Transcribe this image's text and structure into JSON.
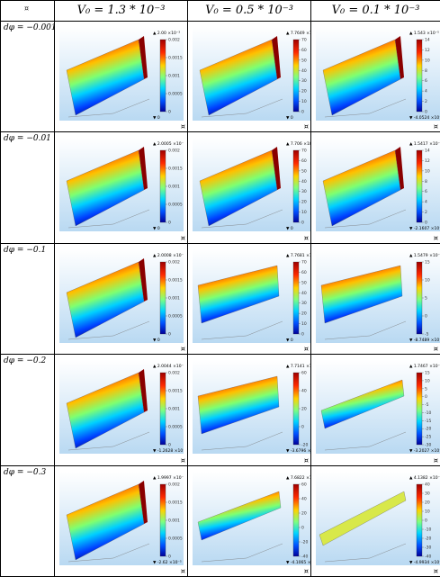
{
  "corner_mark": "¤",
  "cell_mark": "¤",
  "columns": [
    {
      "label": "V₀ = 1.3 * 10⁻³"
    },
    {
      "label": "V₀ = 0.5 * 10⁻³"
    },
    {
      "label": "V₀ = 0.1 * 10⁻³"
    }
  ],
  "rows": [
    {
      "label": "dφ = −0.001",
      "cells": [
        {
          "max": "▲ 2.00 ×10⁻³",
          "min": "▼ 0",
          "ticks": [
            "0.002",
            "0.0015",
            "0.001",
            "0.0005",
            "0"
          ],
          "style": "tilt"
        },
        {
          "max": "▲ 7.7649 ×10⁻⁵",
          "min": "▼ 0",
          "ticks": [
            "70",
            "60",
            "50",
            "40",
            "30",
            "20",
            "10",
            "0"
          ],
          "style": "tilt"
        },
        {
          "max": "▲ 1.543 ×10⁻⁵",
          "min": "▼ -4.0524 ×10⁻⁸",
          "ticks": [
            "14",
            "12",
            "10",
            "8",
            "6",
            "4",
            "2",
            "0"
          ],
          "style": "tilt"
        }
      ]
    },
    {
      "label": "dφ = −0.01",
      "cells": [
        {
          "max": "▲ 2.0005 ×10⁻³",
          "min": "▼ 0",
          "ticks": [
            "0.002",
            "0.0015",
            "0.001",
            "0.0005",
            "0"
          ],
          "style": "tilt"
        },
        {
          "max": "▲ 7.706 ×10⁻⁵",
          "min": "▼ 0",
          "ticks": [
            "70",
            "60",
            "50",
            "40",
            "30",
            "20",
            "10",
            "0"
          ],
          "style": "tilt"
        },
        {
          "max": "▲ 1.5417 ×10⁻⁵",
          "min": "▼ -2.1607 ×10⁻⁶",
          "ticks": [
            "14",
            "12",
            "10",
            "8",
            "6",
            "4",
            "2",
            "0"
          ],
          "style": "tilt"
        }
      ]
    },
    {
      "label": "dφ = −0.1",
      "cells": [
        {
          "max": "▲ 2.0008 ×10⁻³",
          "min": "▼ 0",
          "ticks": [
            "0.002",
            "0.0015",
            "0.001",
            "0.0005",
            "0"
          ],
          "style": "tilt"
        },
        {
          "max": "▲ 7.7681 ×10⁻⁵",
          "min": "▼ 0",
          "ticks": [
            "70",
            "60",
            "50",
            "40",
            "30",
            "20",
            "10",
            "0"
          ],
          "style": "flat"
        },
        {
          "max": "▲ 1.5479 ×10⁻⁵",
          "min": "▼ -8.7489 ×10⁻⁶",
          "ticks": [
            "15",
            "10",
            "5",
            "0",
            "-5"
          ],
          "style": "flat"
        }
      ]
    },
    {
      "label": "dφ = −0.2",
      "cells": [
        {
          "max": "▲ 2.0044 ×10⁻³",
          "min": "▼ -1.2628 ×10⁻⁵",
          "ticks": [
            "0.002",
            "0.0015",
            "0.001",
            "0.0005",
            "0"
          ],
          "style": "tilt"
        },
        {
          "max": "▲ 7.7141 ×10⁻⁵",
          "min": "▼ -3.6796 ×10⁻⁵",
          "ticks": [
            "60",
            "40",
            "20",
            "0",
            "-20"
          ],
          "style": "flat"
        },
        {
          "max": "▲ 1.7467 ×10⁻⁵",
          "min": "▼ -3.2027 ×10⁻⁵",
          "ticks": [
            "15",
            "10",
            "5",
            "0",
            "-5",
            "-10",
            "-15",
            "-20",
            "-25",
            "-30"
          ],
          "style": "strip"
        }
      ]
    },
    {
      "label": "dφ = −0.3",
      "cells": [
        {
          "max": "▲ 1.9997 ×10⁻³",
          "min": "▼ -2.62 ×10⁻⁵",
          "ticks": [
            "0.002",
            "0.0015",
            "0.001",
            "0.0005",
            "0"
          ],
          "style": "tilt"
        },
        {
          "max": "▲ 7.6822 ×10⁻⁵",
          "min": "▼ -4.1065 ×10⁻⁵",
          "ticks": [
            "60",
            "40",
            "20",
            "0",
            "-20",
            "-40"
          ],
          "style": "strip"
        },
        {
          "max": "▲ 4.1382 ×10⁻⁵",
          "min": "▼ -4.9934 ×10⁻⁵",
          "ticks": [
            "40",
            "30",
            "20",
            "10",
            "0",
            "-10",
            "-20",
            "-30",
            "-40"
          ],
          "style": "thin"
        }
      ]
    }
  ]
}
